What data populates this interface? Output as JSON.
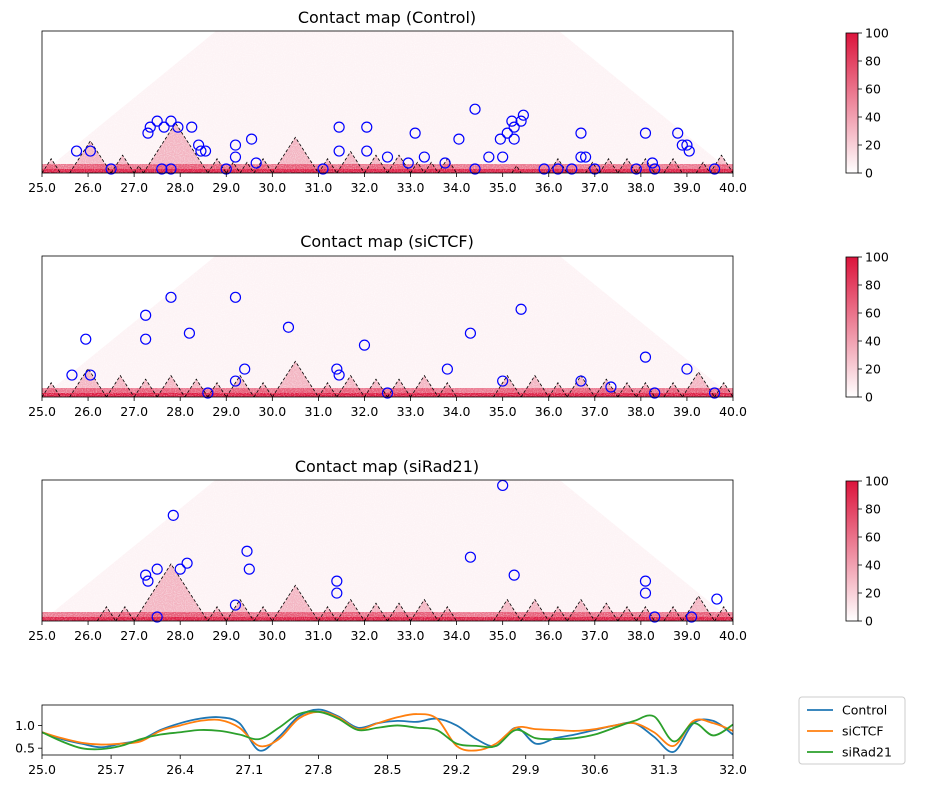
{
  "colorbar": {
    "colormap": "white-to-crimson",
    "color_min": "#ffffff",
    "color_max": "#dc143c",
    "range": [
      0,
      100
    ],
    "ticks": [
      "0",
      "20",
      "40",
      "60",
      "80",
      "100"
    ]
  },
  "styles": {
    "loop_circle": "#0000ff",
    "domain_outline": "#000000"
  },
  "chart_data": [
    {
      "type": "heatmap",
      "title": "Contact map (Control)",
      "xlim": [
        25.0,
        40.0
      ],
      "xticks": [
        "25.0",
        "26.0",
        "27.0",
        "28.0",
        "29.0",
        "30.0",
        "31.0",
        "32.0",
        "33.0",
        "34.0",
        "35.0",
        "36.0",
        "37.0",
        "38.0",
        "39.0",
        "40.0"
      ],
      "domains_dashed": [
        [
          25.0,
          25.4
        ],
        [
          25.6,
          26.5
        ],
        [
          26.5,
          27.0
        ],
        [
          27.0,
          27.2
        ],
        [
          27.2,
          28.6
        ],
        [
          28.6,
          29.0
        ],
        [
          29.0,
          29.3
        ],
        [
          29.3,
          29.6
        ],
        [
          29.6,
          30.0
        ],
        [
          30.0,
          31.0
        ],
        [
          31.0,
          31.4
        ],
        [
          31.4,
          32.0
        ],
        [
          32.0,
          32.5
        ],
        [
          32.5,
          33.0
        ],
        [
          33.0,
          33.3
        ],
        [
          33.3,
          33.6
        ],
        [
          33.6,
          34.0
        ],
        [
          35.2,
          35.4
        ],
        [
          36.0,
          36.4
        ],
        [
          36.8,
          37.1
        ],
        [
          37.1,
          37.5
        ],
        [
          37.5,
          37.9
        ],
        [
          37.9,
          38.3
        ],
        [
          38.5,
          38.9
        ],
        [
          39.2,
          39.5
        ],
        [
          39.5,
          40.0
        ]
      ],
      "loops": [
        [
          25.6,
          25.9
        ],
        [
          25.9,
          26.2
        ],
        [
          26.5,
          26.5
        ],
        [
          27.0,
          27.6
        ],
        [
          27.0,
          27.7
        ],
        [
          27.1,
          27.9
        ],
        [
          27.3,
          28.0
        ],
        [
          27.4,
          28.2
        ],
        [
          27.6,
          27.6
        ],
        [
          27.8,
          27.8
        ],
        [
          27.6,
          28.3
        ],
        [
          27.9,
          28.6
        ],
        [
          28.2,
          28.6
        ],
        [
          28.3,
          28.6
        ],
        [
          28.4,
          28.7
        ],
        [
          29.0,
          29.0
        ],
        [
          29.1,
          29.3
        ],
        [
          29.0,
          29.4
        ],
        [
          29.3,
          29.8
        ],
        [
          29.6,
          29.7
        ],
        [
          31.1,
          31.1
        ],
        [
          31.1,
          31.8
        ],
        [
          31.3,
          31.6
        ],
        [
          31.7,
          32.4
        ],
        [
          31.9,
          32.2
        ],
        [
          32.4,
          32.6
        ],
        [
          32.8,
          33.4
        ],
        [
          32.9,
          33.0
        ],
        [
          33.2,
          33.4
        ],
        [
          33.7,
          33.8
        ],
        [
          33.8,
          34.3
        ],
        [
          33.9,
          34.9
        ],
        [
          34.4,
          34.4
        ],
        [
          34.6,
          34.8
        ],
        [
          34.7,
          35.2
        ],
        [
          34.9,
          35.1
        ],
        [
          34.8,
          35.4
        ],
        [
          34.8,
          35.6
        ],
        [
          34.9,
          35.6
        ],
        [
          35.0,
          35.5
        ],
        [
          35.0,
          35.8
        ],
        [
          35.0,
          35.9
        ],
        [
          35.9,
          35.9
        ],
        [
          36.2,
          36.2
        ],
        [
          36.5,
          36.5
        ],
        [
          36.4,
          37.0
        ],
        [
          36.6,
          36.8
        ],
        [
          36.7,
          36.9
        ],
        [
          37.0,
          37.0
        ],
        [
          37.9,
          37.9
        ],
        [
          37.8,
          38.4
        ],
        [
          38.2,
          38.3
        ],
        [
          38.3,
          38.3
        ],
        [
          38.5,
          39.1
        ],
        [
          38.7,
          39.1
        ],
        [
          38.8,
          39.2
        ],
        [
          38.9,
          39.2
        ],
        [
          39.6,
          39.6
        ]
      ]
    },
    {
      "type": "heatmap",
      "title": "Contact map (siCTCF)",
      "xlim": [
        25.0,
        40.0
      ],
      "xticks": [
        "25.0",
        "26.0",
        "27.0",
        "28.0",
        "29.0",
        "30.0",
        "31.0",
        "32.0",
        "33.0",
        "34.0",
        "35.0",
        "36.0",
        "37.0",
        "38.0",
        "39.0",
        "40.0"
      ],
      "domains_dashed": [
        [
          25.0,
          25.4
        ],
        [
          25.6,
          26.4
        ],
        [
          26.4,
          27.0
        ],
        [
          27.0,
          27.5
        ],
        [
          27.5,
          28.1
        ],
        [
          28.1,
          28.6
        ],
        [
          28.6,
          29.0
        ],
        [
          29.0,
          29.6
        ],
        [
          29.6,
          30.0
        ],
        [
          30.0,
          31.0
        ],
        [
          31.0,
          31.4
        ],
        [
          31.4,
          32.0
        ],
        [
          32.0,
          32.5
        ],
        [
          32.5,
          33.0
        ],
        [
          33.0,
          33.6
        ],
        [
          33.6,
          34.0
        ],
        [
          34.8,
          35.4
        ],
        [
          35.4,
          36.0
        ],
        [
          36.0,
          36.4
        ],
        [
          36.4,
          37.0
        ],
        [
          37.0,
          37.5
        ],
        [
          37.5,
          37.9
        ],
        [
          37.9,
          38.3
        ],
        [
          38.5,
          38.9
        ],
        [
          38.9,
          39.6
        ],
        [
          39.6,
          40.0
        ]
      ],
      "loops": [
        [
          25.5,
          25.8
        ],
        [
          25.5,
          26.4
        ],
        [
          25.9,
          26.2
        ],
        [
          26.6,
          27.9
        ],
        [
          26.8,
          27.7
        ],
        [
          27.0,
          28.6
        ],
        [
          27.7,
          28.7
        ],
        [
          28.6,
          28.6
        ],
        [
          28.4,
          30.0
        ],
        [
          29.1,
          29.3
        ],
        [
          29.2,
          29.6
        ],
        [
          29.8,
          30.9
        ],
        [
          31.2,
          31.6
        ],
        [
          31.3,
          31.6
        ],
        [
          31.6,
          32.4
        ],
        [
          32.5,
          32.5
        ],
        [
          33.6,
          34.0
        ],
        [
          33.8,
          34.8
        ],
        [
          34.9,
          35.1
        ],
        [
          34.7,
          36.1
        ],
        [
          36.6,
          36.8
        ],
        [
          37.3,
          37.4
        ],
        [
          37.8,
          38.4
        ],
        [
          38.3,
          38.3
        ],
        [
          38.8,
          39.2
        ],
        [
          39.6,
          39.6
        ]
      ]
    },
    {
      "type": "heatmap",
      "title": "Contact map (siRad21)",
      "xlim": [
        25.0,
        40.0
      ],
      "xticks": [
        "25.0",
        "26.0",
        "27.0",
        "28.0",
        "29.0",
        "30.0",
        "31.0",
        "32.0",
        "33.0",
        "34.0",
        "35.0",
        "36.0",
        "37.0",
        "38.0",
        "39.0",
        "40.0"
      ],
      "domains_dashed": [
        [
          26.2,
          26.6
        ],
        [
          26.6,
          27.0
        ],
        [
          27.0,
          28.6
        ],
        [
          28.6,
          29.0
        ],
        [
          29.0,
          29.6
        ],
        [
          29.6,
          30.0
        ],
        [
          30.0,
          31.0
        ],
        [
          31.0,
          31.4
        ],
        [
          31.4,
          32.0
        ],
        [
          32.0,
          32.5
        ],
        [
          32.5,
          33.0
        ],
        [
          33.0,
          33.6
        ],
        [
          33.6,
          34.0
        ],
        [
          34.8,
          35.4
        ],
        [
          35.4,
          36.0
        ],
        [
          36.0,
          36.4
        ],
        [
          36.4,
          37.0
        ],
        [
          37.0,
          37.5
        ],
        [
          37.5,
          37.9
        ],
        [
          37.9,
          38.3
        ],
        [
          38.5,
          38.9
        ],
        [
          38.9,
          39.6
        ],
        [
          39.6,
          40.0
        ]
      ],
      "loops": [
        [
          26.9,
          27.6
        ],
        [
          27.0,
          27.6
        ],
        [
          27.1,
          27.9
        ],
        [
          27.0,
          28.7
        ],
        [
          27.6,
          28.4
        ],
        [
          27.7,
          28.6
        ],
        [
          27.5,
          27.5
        ],
        [
          29.1,
          29.3
        ],
        [
          29.1,
          29.9
        ],
        [
          28.9,
          30.0
        ],
        [
          31.1,
          31.7
        ],
        [
          31.2,
          31.6
        ],
        [
          33.8,
          34.8
        ],
        [
          33.9,
          36.1
        ],
        [
          34.9,
          35.6
        ],
        [
          37.8,
          38.4
        ],
        [
          37.9,
          38.3
        ],
        [
          38.3,
          38.3
        ],
        [
          39.1,
          39.1
        ],
        [
          39.5,
          39.8
        ]
      ]
    },
    {
      "type": "line",
      "xlim": [
        25.0,
        32.0
      ],
      "ylim": [
        0.35,
        1.45
      ],
      "xticks": [
        "25.0",
        "25.7",
        "26.4",
        "27.1",
        "27.8",
        "28.5",
        "29.2",
        "29.9",
        "30.6",
        "31.3",
        "32.0"
      ],
      "yticks": [
        "0.5",
        "1.0"
      ],
      "x": [
        25.0,
        25.2,
        25.4,
        25.6,
        25.8,
        26.0,
        26.2,
        26.4,
        26.6,
        26.8,
        27.0,
        27.2,
        27.4,
        27.6,
        27.8,
        28.0,
        28.2,
        28.4,
        28.6,
        28.8,
        29.0,
        29.2,
        29.4,
        29.6,
        29.8,
        30.0,
        30.2,
        30.4,
        30.6,
        30.8,
        31.0,
        31.2,
        31.4,
        31.6,
        31.8,
        32.0
      ],
      "series": [
        {
          "name": "Control",
          "color": "#1f77b4",
          "values": [
            0.85,
            0.7,
            0.6,
            0.52,
            0.6,
            0.68,
            0.9,
            1.05,
            1.15,
            1.18,
            1.05,
            0.45,
            0.75,
            1.2,
            1.35,
            1.2,
            0.95,
            1.05,
            1.1,
            1.08,
            1.15,
            1.0,
            0.7,
            0.55,
            0.95,
            0.6,
            0.72,
            0.8,
            0.9,
            1.0,
            1.05,
            0.75,
            0.42,
            1.05,
            1.1,
            0.8
          ]
        },
        {
          "name": "siCTCF",
          "color": "#ff7f0e",
          "values": [
            0.85,
            0.72,
            0.62,
            0.58,
            0.6,
            0.65,
            0.88,
            1.0,
            1.1,
            1.12,
            0.95,
            0.55,
            0.7,
            1.15,
            1.3,
            1.18,
            0.92,
            1.05,
            1.18,
            1.25,
            1.15,
            0.55,
            0.45,
            0.6,
            0.95,
            0.92,
            0.9,
            0.88,
            0.92,
            1.0,
            1.05,
            0.85,
            0.55,
            1.1,
            1.05,
            0.88
          ]
        },
        {
          "name": "siRad21",
          "color": "#2ca02c",
          "values": [
            0.85,
            0.65,
            0.5,
            0.48,
            0.55,
            0.7,
            0.8,
            0.85,
            0.9,
            0.88,
            0.8,
            0.7,
            0.95,
            1.25,
            1.3,
            1.15,
            0.9,
            0.95,
            1.0,
            0.95,
            0.9,
            0.6,
            0.55,
            0.55,
            0.9,
            0.72,
            0.7,
            0.72,
            0.8,
            0.95,
            1.1,
            1.2,
            0.65,
            1.05,
            0.78,
            1.02
          ]
        }
      ],
      "legend": {
        "position": "right",
        "entries": [
          "Control",
          "siCTCF",
          "siRad21"
        ]
      }
    }
  ]
}
